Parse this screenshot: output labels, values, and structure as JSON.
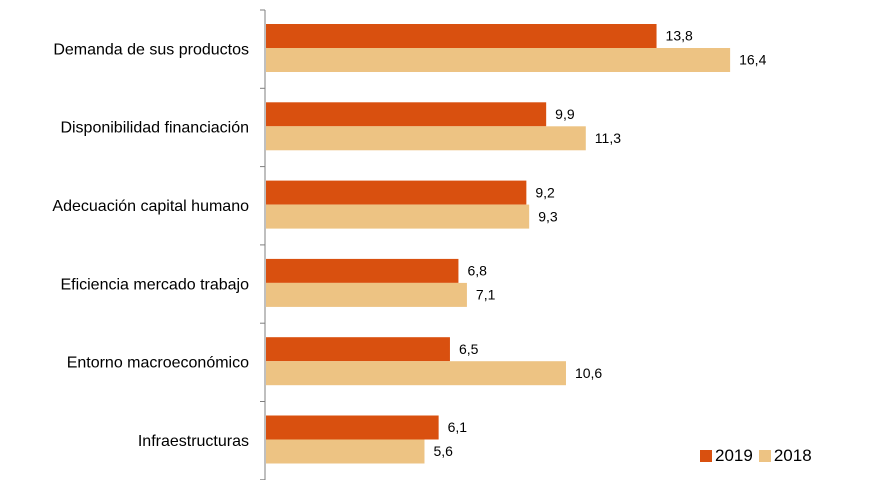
{
  "chart_data": {
    "type": "bar",
    "orientation": "horizontal",
    "categories": [
      "Demanda de sus productos",
      "Disponibilidad financiación",
      "Adecuación capital humano",
      "Eficiencia mercado trabajo",
      "Entorno macroeconómico",
      "Infraestructuras"
    ],
    "series": [
      {
        "name": "2019",
        "color": "#d9500f",
        "values": [
          13.8,
          9.9,
          9.2,
          6.8,
          6.5,
          6.1
        ],
        "labels": [
          "13,8",
          "9,9",
          "9,2",
          "6,8",
          "6,5",
          "6,1"
        ]
      },
      {
        "name": "2018",
        "color": "#edc383",
        "values": [
          16.4,
          11.3,
          9.3,
          7.1,
          10.6,
          5.6
        ],
        "labels": [
          "16,4",
          "11,3",
          "9,3",
          "7,1",
          "10,6",
          "5,6"
        ]
      }
    ],
    "xlim": [
      0,
      18
    ],
    "grid": false,
    "legend_position": "bottom-right"
  }
}
